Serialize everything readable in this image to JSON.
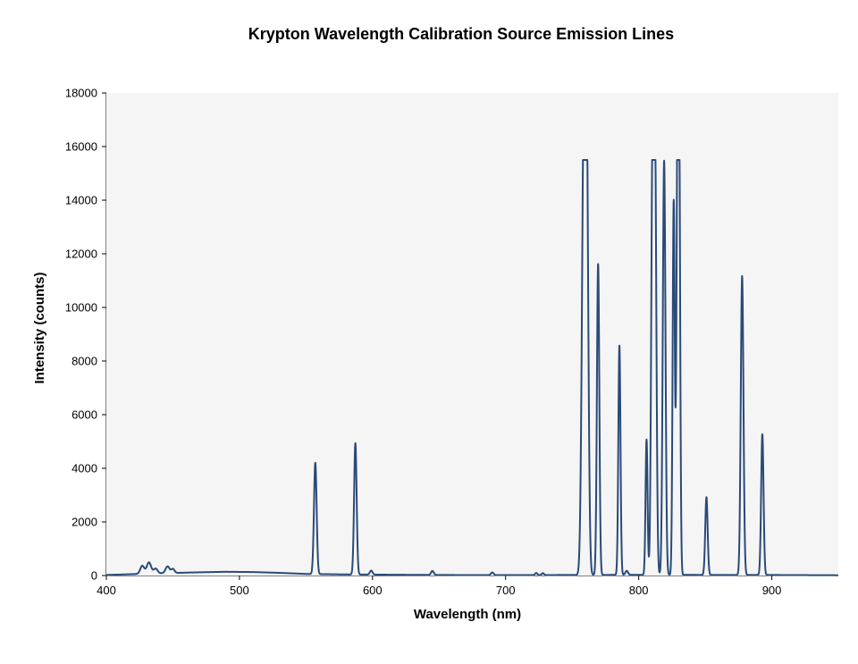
{
  "chart_data": {
    "type": "line",
    "title": "Krypton Wavelength Calibration Source Emission Lines",
    "xlabel": "Wavelength (nm)",
    "ylabel": "Intensity (counts)",
    "xlim": [
      400,
      950
    ],
    "ylim": [
      0,
      18000
    ],
    "xticks": [
      400,
      500,
      600,
      700,
      800,
      900
    ],
    "yticks": [
      0,
      2000,
      4000,
      6000,
      8000,
      10000,
      12000,
      14000,
      16000,
      18000
    ],
    "grid": false,
    "legend": "none",
    "line_color": "#2a4a78",
    "background": "#f5f5f5",
    "baseline": [
      [
        400,
        20
      ],
      [
        425,
        60
      ],
      [
        445,
        90
      ],
      [
        470,
        120
      ],
      [
        490,
        140
      ],
      [
        510,
        130
      ],
      [
        530,
        100
      ],
      [
        550,
        60
      ],
      [
        580,
        40
      ],
      [
        650,
        20
      ],
      [
        700,
        15
      ],
      [
        750,
        20
      ],
      [
        800,
        25
      ],
      [
        900,
        20
      ],
      [
        950,
        10
      ]
    ],
    "peaks": [
      {
        "x": 427,
        "y": 300,
        "w": 1.5
      },
      {
        "x": 432,
        "y": 420,
        "w": 1.6
      },
      {
        "x": 437,
        "y": 180,
        "w": 1.5
      },
      {
        "x": 446,
        "y": 250,
        "w": 1.5
      },
      {
        "x": 450,
        "y": 150,
        "w": 1.2
      },
      {
        "x": 557,
        "y": 4150,
        "w": 1.0
      },
      {
        "x": 587.1,
        "y": 4900,
        "w": 0.95
      },
      {
        "x": 599,
        "y": 150,
        "w": 1.0
      },
      {
        "x": 645,
        "y": 150,
        "w": 1.0
      },
      {
        "x": 690,
        "y": 100,
        "w": 1.0
      },
      {
        "x": 723,
        "y": 80,
        "w": 0.8
      },
      {
        "x": 728,
        "y": 70,
        "w": 0.8
      },
      {
        "x": 758.7,
        "y": 15250,
        "w": 1.4
      },
      {
        "x": 760.8,
        "y": 15250,
        "w": 1.3
      },
      {
        "x": 769.5,
        "y": 11600,
        "w": 0.9
      },
      {
        "x": 785.5,
        "y": 8550,
        "w": 0.8
      },
      {
        "x": 791,
        "y": 150,
        "w": 1.0
      },
      {
        "x": 805.9,
        "y": 5050,
        "w": 0.75
      },
      {
        "x": 810.4,
        "y": 15200,
        "w": 1.0
      },
      {
        "x": 812.3,
        "y": 15100,
        "w": 1.0
      },
      {
        "x": 819.1,
        "y": 15450,
        "w": 1.0
      },
      {
        "x": 826.3,
        "y": 13950,
        "w": 0.8
      },
      {
        "x": 829.2,
        "y": 15100,
        "w": 0.85
      },
      {
        "x": 830.4,
        "y": 13900,
        "w": 0.8
      },
      {
        "x": 850.9,
        "y": 2900,
        "w": 0.9
      },
      {
        "x": 877.7,
        "y": 11150,
        "w": 1.0
      },
      {
        "x": 892.9,
        "y": 5250,
        "w": 0.9
      }
    ]
  }
}
